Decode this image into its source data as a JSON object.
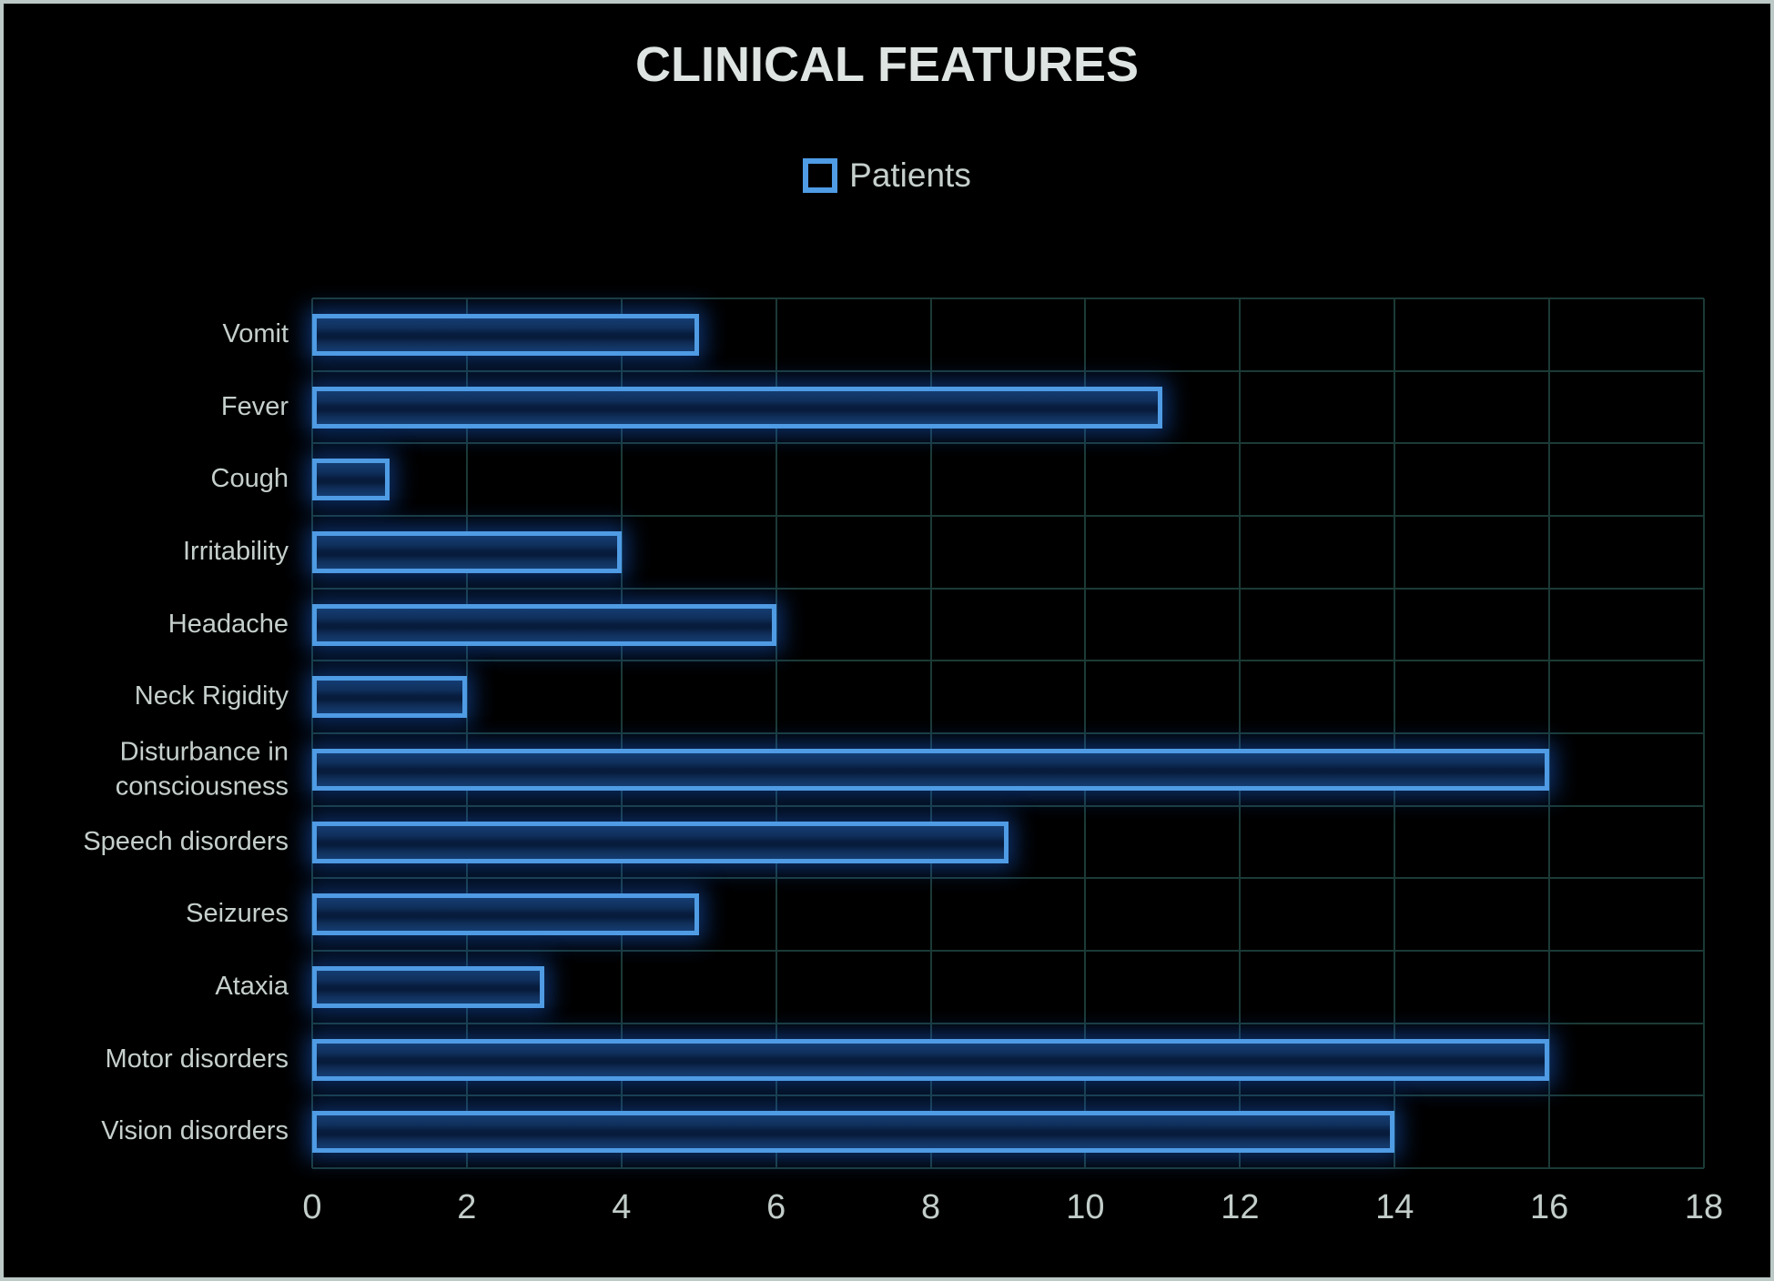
{
  "title": "CLINICAL FEATURES",
  "legend": {
    "label": "Patients"
  },
  "chart_data": {
    "type": "bar",
    "orientation": "horizontal",
    "title": "CLINICAL FEATURES",
    "legend_entries": [
      "Patients"
    ],
    "legend_position": "top",
    "categories": [
      "Vomit",
      "Fever",
      "Cough",
      "Irritability",
      "Headache",
      "Neck Rigidity",
      "Disturbance in consciousness",
      "Speech disorders",
      "Seizures",
      "Ataxia",
      "Motor disorders",
      "Vision disorders"
    ],
    "values": [
      5,
      11,
      1,
      4,
      6,
      2,
      16,
      9,
      5,
      3,
      16,
      14
    ],
    "xlabel": "",
    "ylabel": "",
    "xlim": [
      0,
      18
    ],
    "xticks": [
      0,
      2,
      4,
      6,
      8,
      10,
      12,
      14,
      16,
      18
    ],
    "grid": true
  },
  "colors": {
    "background": "#000000",
    "frame_border": "#bcc9c6",
    "bar_border": "#4f9be4",
    "bar_fill_dark": "#071b3a",
    "bar_fill_light": "#143d72",
    "bar_glow": "rgba(25,95,210,0.50)",
    "grid": "#1b3a36",
    "tick_text": "#c2cdc9",
    "label_text": "#c5cfcb",
    "title_text": "#dde4e2"
  }
}
